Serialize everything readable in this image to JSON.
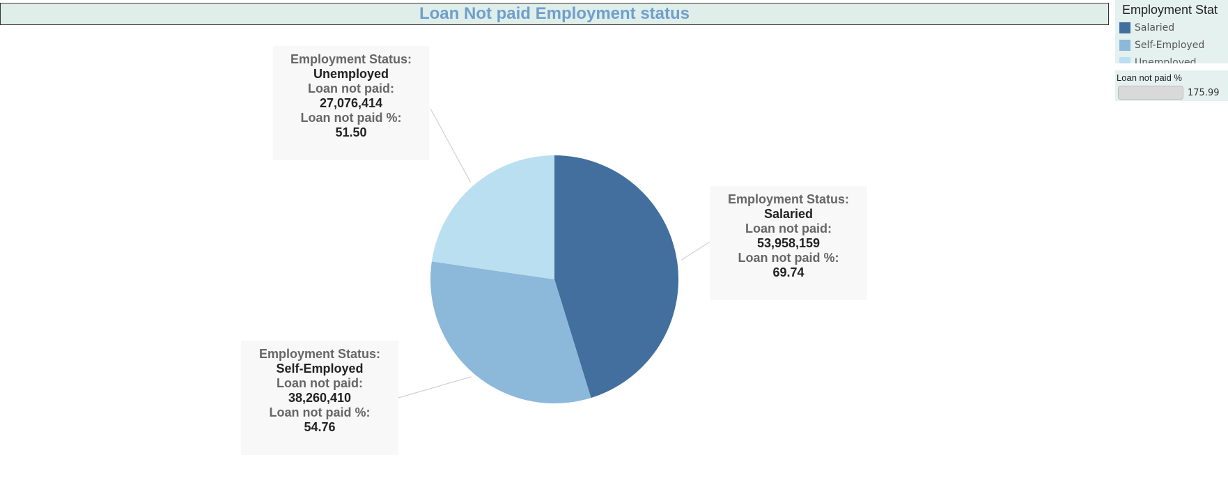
{
  "chart_data": {
    "type": "pie",
    "title": "Loan Not paid Employment status",
    "legend_title": "Employment Stat",
    "legend_position": "top-right",
    "slices": [
      {
        "category": "Salaried",
        "loan_not_paid": 53958159,
        "loan_not_paid_display": "53,958,159",
        "loan_not_paid_pct": "69.74",
        "color": "#426f9e"
      },
      {
        "category": "Self-Employed",
        "loan_not_paid": 38260410,
        "loan_not_paid_display": "38,260,410",
        "loan_not_paid_pct": "54.76",
        "color": "#8cb8da"
      },
      {
        "category": "Unemployed",
        "loan_not_paid": 27076414,
        "loan_not_paid_display": "27,076,414",
        "loan_not_paid_pct": "51.50",
        "color": "#badff1"
      }
    ],
    "labels": {
      "status": "Employment Status:",
      "not_paid": "Loan not paid:",
      "not_paid_pct": "Loan not paid %:"
    },
    "size_legend": {
      "title": "Loan not paid %",
      "value": "175.99"
    }
  }
}
